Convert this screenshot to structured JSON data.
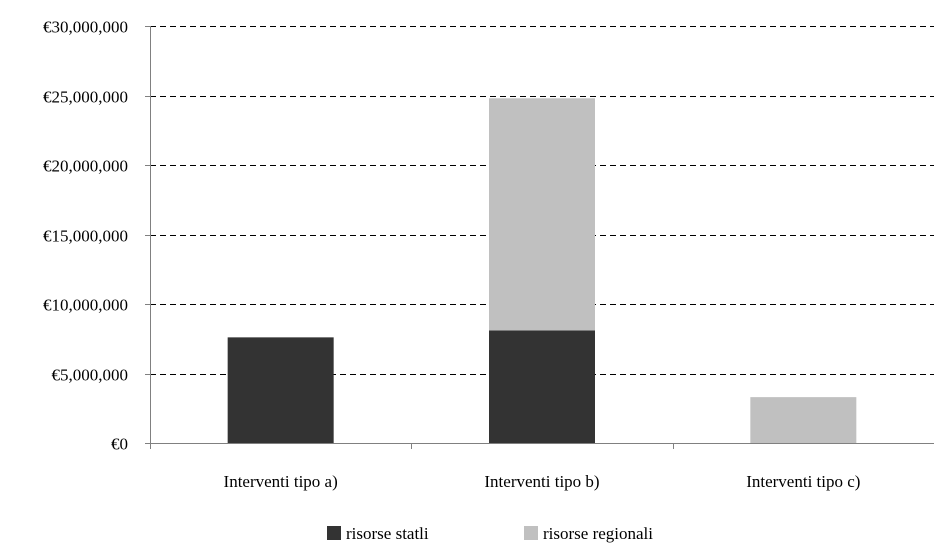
{
  "chart_data": {
    "type": "bar",
    "stacked": true,
    "categories": [
      "Interventi tipo a)",
      "Interventi tipo b)",
      "Interventi tipo c)"
    ],
    "series": [
      {
        "name": "risorse statli",
        "color": "#333333",
        "values": [
          7600000,
          8100000,
          0
        ]
      },
      {
        "name": "risorse regionali",
        "color": "#c0c0c0",
        "values": [
          0,
          16700000,
          3300000
        ]
      }
    ],
    "ylim": [
      0,
      30000000
    ],
    "yticks": [
      0,
      5000000,
      10000000,
      15000000,
      20000000,
      25000000,
      30000000
    ],
    "ytick_labels": [
      "€0",
      "€5,000,000",
      "€10,000,000",
      "€15,000,000",
      "€20,000,000",
      "€25,000,000",
      "€30,000,000"
    ],
    "grid": "horizontal-dashed",
    "legend_position": "bottom"
  }
}
